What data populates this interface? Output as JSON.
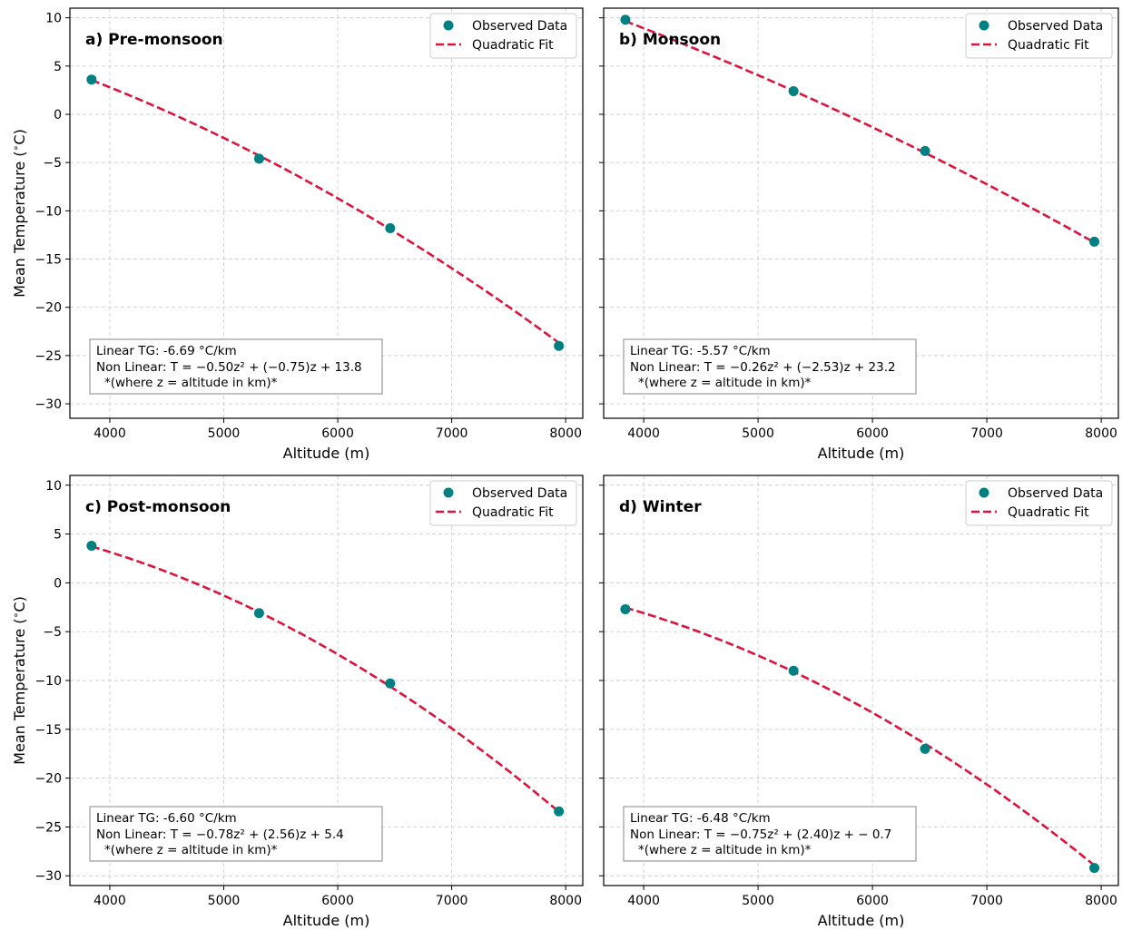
{
  "chart_data": [
    {
      "type": "scatter",
      "title": "a) Pre-monsoon",
      "xlabel": "Altitude (m)",
      "ylabel": "Mean Temperature ($^\\circ$C)",
      "ylabel_text": "Mean Temperature (",
      "ylabel_unit": "C)",
      "xlim": [
        3650,
        8150
      ],
      "ylim": [
        -31.5,
        11.0
      ],
      "xticks": [
        4000,
        5000,
        6000,
        7000,
        8000
      ],
      "yticks": [
        10,
        5,
        0,
        -5,
        -10,
        -15,
        -20,
        -25,
        -30
      ],
      "ytick_labels": [
        "10",
        "5",
        "0",
        "−5",
        "−10",
        "−15",
        "−20",
        "−25",
        "−30"
      ],
      "grid": true,
      "legend_position": "top-right",
      "observed": {
        "name": "Observed Data",
        "color": "#008080",
        "x": [
          3840,
          5310,
          6460,
          7940
        ],
        "y": [
          3.6,
          -4.6,
          -11.8,
          -24.0
        ]
      },
      "fit": {
        "name": "Quadratic Fit",
        "color": "#dc143c",
        "style": "dashed",
        "coefficients": {
          "a": -0.5,
          "b": -0.75,
          "c": 13.8
        },
        "x_range": [
          3840,
          7940
        ]
      },
      "annotation": {
        "line1": "Linear TG: -6.69 °C/km",
        "line2": "Non Linear: T = −0.50z² + (−0.75)z + 13.8",
        "line3": "*(where z = altitude in km)*"
      }
    },
    {
      "type": "scatter",
      "title": "b) Monsoon",
      "xlabel": "Altitude (m)",
      "ylabel": "",
      "xlim": [
        3650,
        8150
      ],
      "ylim": [
        -31.5,
        11.0
      ],
      "xticks": [
        4000,
        5000,
        6000,
        7000,
        8000
      ],
      "yticks": [
        10,
        5,
        0,
        -5,
        -10,
        -15,
        -20,
        -25,
        -30
      ],
      "grid": true,
      "legend_position": "top-right",
      "observed": {
        "name": "Observed Data",
        "color": "#008080",
        "x": [
          3840,
          5310,
          6460,
          7940
        ],
        "y": [
          9.8,
          2.4,
          -3.8,
          -13.2
        ]
      },
      "fit": {
        "name": "Quadratic Fit",
        "color": "#dc143c",
        "style": "dashed",
        "coefficients": {
          "a": -0.26,
          "b": -2.53,
          "c": 23.2
        },
        "x_range": [
          3840,
          7940
        ]
      },
      "annotation": {
        "line1": "Linear TG: -5.57 °C/km",
        "line2": "Non Linear: T = −0.26z² + (−2.53)z + 23.2",
        "line3": "*(where z = altitude in km)*"
      }
    },
    {
      "type": "scatter",
      "title": "c) Post-monsoon",
      "xlabel": "Altitude (m)",
      "ylabel": "Mean Temperature ($^\\circ$C)",
      "ylabel_text": "Mean Temperature (",
      "ylabel_unit": "C)",
      "xlim": [
        3650,
        8150
      ],
      "ylim": [
        -31.0,
        11.0
      ],
      "xticks": [
        4000,
        5000,
        6000,
        7000,
        8000
      ],
      "yticks": [
        10,
        5,
        0,
        -5,
        -10,
        -15,
        -20,
        -25,
        -30
      ],
      "ytick_labels": [
        "10",
        "5",
        "0",
        "−5",
        "−10",
        "−15",
        "−20",
        "−25",
        "−30"
      ],
      "grid": true,
      "legend_position": "top-right",
      "observed": {
        "name": "Observed Data",
        "color": "#008080",
        "x": [
          3840,
          5310,
          6460,
          7940
        ],
        "y": [
          3.8,
          -3.1,
          -10.3,
          -23.4
        ]
      },
      "fit": {
        "name": "Quadratic Fit",
        "color": "#dc143c",
        "style": "dashed",
        "coefficients": {
          "a": -0.78,
          "b": 2.56,
          "c": 5.4
        },
        "x_range": [
          3840,
          7940
        ]
      },
      "annotation": {
        "line1": "Linear TG: -6.60 °C/km",
        "line2": "Non Linear: T = −0.78z² + (2.56)z + 5.4",
        "line3": "*(where z = altitude in km)*"
      }
    },
    {
      "type": "scatter",
      "title": "d) Winter",
      "xlabel": "Altitude (m)",
      "ylabel": "",
      "xlim": [
        3650,
        8150
      ],
      "ylim": [
        -31.0,
        11.0
      ],
      "xticks": [
        4000,
        5000,
        6000,
        7000,
        8000
      ],
      "yticks": [
        10,
        5,
        0,
        -5,
        -10,
        -15,
        -20,
        -25,
        -30
      ],
      "grid": true,
      "legend_position": "top-right",
      "observed": {
        "name": "Observed Data",
        "color": "#008080",
        "x": [
          3840,
          5310,
          6460,
          7940
        ],
        "y": [
          -2.7,
          -9.0,
          -17.0,
          -29.2
        ]
      },
      "fit": {
        "name": "Quadratic Fit",
        "color": "#dc143c",
        "style": "dashed",
        "coefficients": {
          "a": -0.75,
          "b": 2.4,
          "c": -0.7
        },
        "x_range": [
          3840,
          7940
        ]
      },
      "annotation": {
        "line1": "Linear TG: -6.48 °C/km",
        "line2": "Non Linear: T = −0.75z² + (2.40)z + − 0.7",
        "line3": "*(where z = altitude in km)*"
      }
    }
  ]
}
